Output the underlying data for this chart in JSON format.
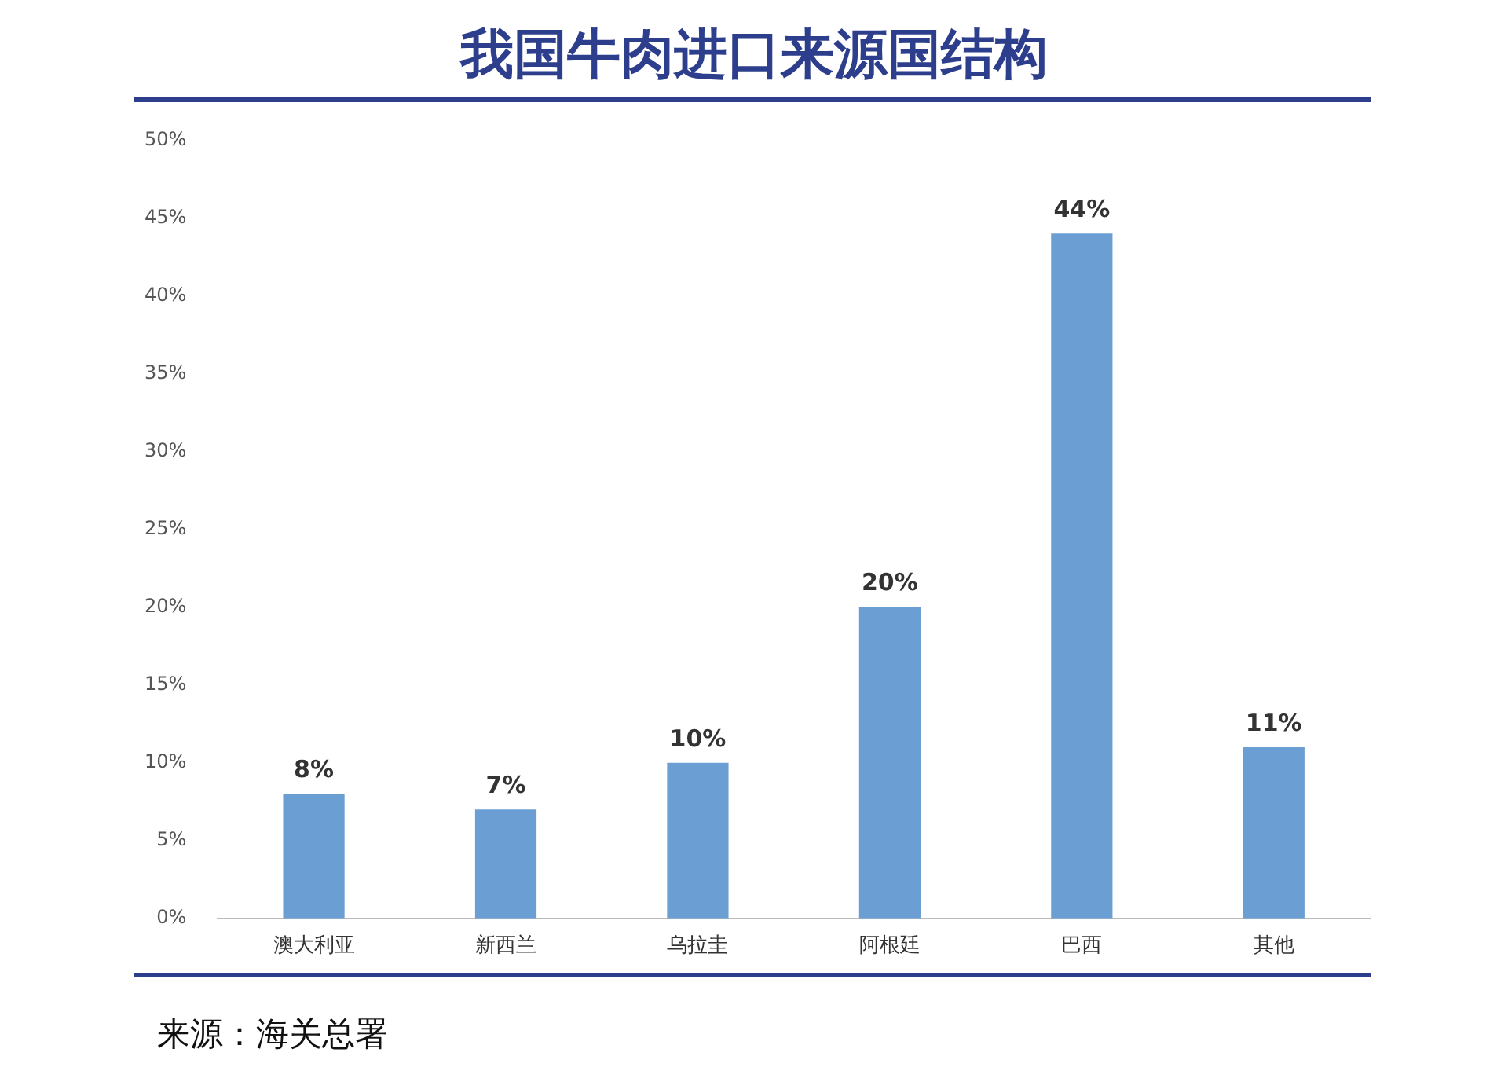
{
  "chart_data": {
    "type": "bar",
    "title": "我国牛肉进口来源国结构",
    "categories": [
      "澳大利亚",
      "新西兰",
      "乌拉圭",
      "阿根廷",
      "巴西",
      "其他"
    ],
    "values": [
      8,
      7,
      10,
      20,
      44,
      11
    ],
    "value_labels": [
      "8%",
      "7%",
      "10%",
      "20%",
      "44%",
      "11%"
    ],
    "color": "#6b9fd3",
    "ylim": [
      0,
      50
    ],
    "yticks": [
      {
        "value": 0,
        "label": "0%"
      },
      {
        "value": 5,
        "label": "5%"
      },
      {
        "value": 10,
        "label": "10%"
      },
      {
        "value": 15,
        "label": "15%"
      },
      {
        "value": 20,
        "label": "20%"
      },
      {
        "value": 25,
        "label": "25%"
      },
      {
        "value": 30,
        "label": "30%"
      },
      {
        "value": 35,
        "label": "35%"
      },
      {
        "value": 40,
        "label": "40%"
      },
      {
        "value": 45,
        "label": "45%"
      },
      {
        "value": 50,
        "label": "50%"
      }
    ],
    "grid": false,
    "legend": false,
    "annotations": [
      "来源：海关总署"
    ]
  }
}
